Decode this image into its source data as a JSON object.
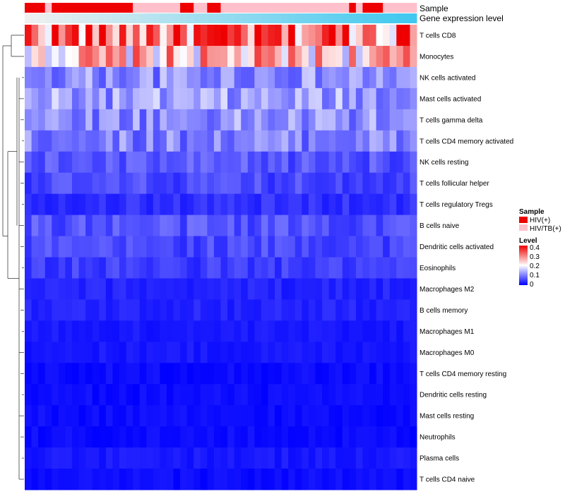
{
  "chart_data": {
    "type": "heatmap",
    "annotations": {
      "sample_title": "Sample",
      "gene_title": "Gene expression level"
    },
    "sample_groups": [
      {
        "name": "HIV(+)",
        "color": "#ee0000"
      },
      {
        "name": "HIV/TB(+)",
        "color": "#ffc0cb"
      }
    ],
    "sample_assignment": [
      0,
      0,
      0,
      1,
      0,
      0,
      0,
      0,
      0,
      0,
      0,
      0,
      0,
      0,
      0,
      0,
      1,
      1,
      1,
      1,
      1,
      1,
      1,
      0,
      0,
      1,
      1,
      0,
      0,
      1,
      1,
      1,
      1,
      1,
      1,
      1,
      1,
      1,
      1,
      1,
      1,
      1,
      1,
      1,
      1,
      1,
      1,
      1,
      0,
      1,
      0,
      0,
      0,
      1,
      1,
      1,
      1,
      1
    ],
    "gene_gradient": [
      "#f0f0f0",
      "#40c8f0"
    ],
    "rows": [
      "T cells CD8",
      "Monocytes",
      "NK cells activated",
      "Mast cells activated",
      "T cells gamma delta",
      "T cells CD4 memory activated",
      "NK cells resting",
      "T cells follicular helper",
      "T cells regulatory  Tregs",
      "B cells naive",
      "Dendritic cells activated",
      "Eosinophils",
      "Macrophages M2",
      "B cells memory",
      "Macrophages M1",
      "Macrophages M0",
      "T cells CD4 memory resting",
      "Dendritic cells resting",
      "Mast cells resting",
      "Neutrophils",
      "Plasma cells",
      "T cells CD4 naive"
    ],
    "row_levels_approx": [
      0.34,
      0.26,
      0.12,
      0.13,
      0.12,
      0.11,
      0.07,
      0.06,
      0.04,
      0.07,
      0.06,
      0.05,
      0.03,
      0.03,
      0.02,
      0.02,
      0.01,
      0.01,
      0.01,
      0.01,
      0.02,
      0.01
    ],
    "n_columns": 58,
    "legend_sample_title": "Sample",
    "legend_level_title": "Level",
    "level_ticks": [
      "0.4",
      "0.3",
      "0.2",
      "0.1",
      "0"
    ],
    "color_scale": {
      "low": "#0000ff",
      "mid": "#ffffff",
      "high": "#ee0000",
      "min": 0,
      "max": 0.43
    },
    "dendrogram_order": "rows"
  }
}
